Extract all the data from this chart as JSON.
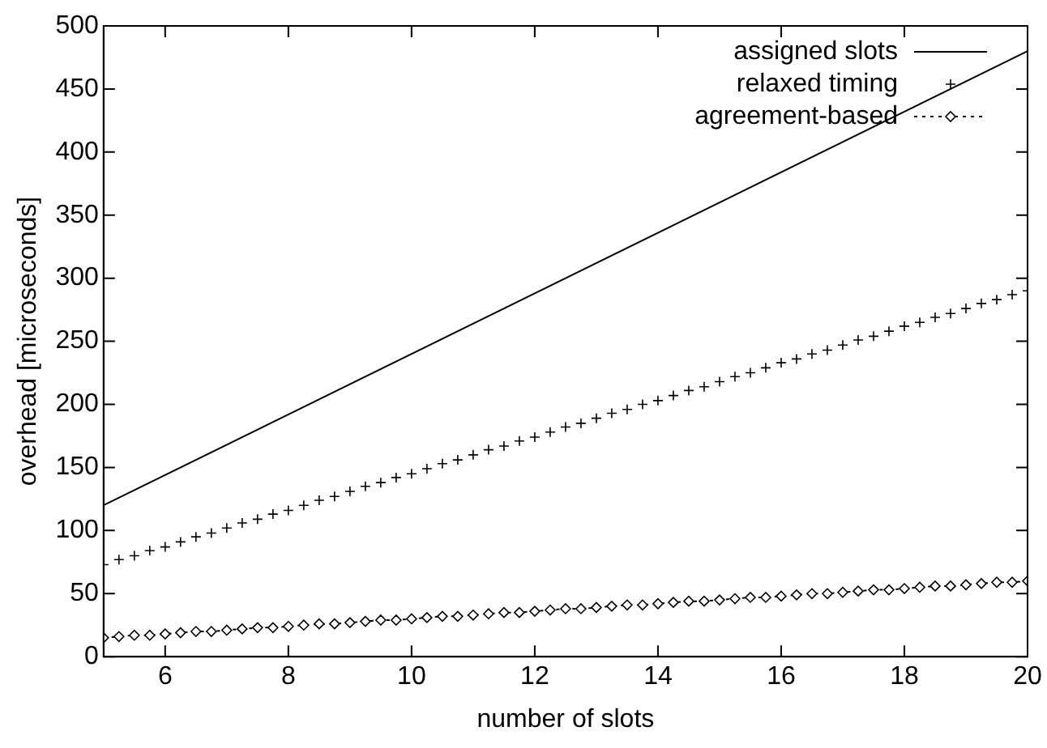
{
  "chart_data": {
    "type": "line",
    "xlabel": "number of slots",
    "ylabel": "overhead [microseconds]",
    "xlim": [
      5,
      20
    ],
    "xticks": [
      6,
      8,
      10,
      12,
      14,
      16,
      18,
      20
    ],
    "ylim": [
      0,
      500
    ],
    "yticks": [
      0,
      50,
      100,
      150,
      200,
      250,
      300,
      350,
      400,
      450,
      500
    ],
    "legend": "top right",
    "x": [
      5,
      5.25,
      5.5,
      5.75,
      6,
      6.25,
      6.5,
      6.75,
      7,
      7.25,
      7.5,
      7.75,
      8,
      8.25,
      8.5,
      8.75,
      9,
      9.25,
      9.5,
      9.75,
      10,
      10.25,
      10.5,
      10.75,
      11,
      11.25,
      11.5,
      11.75,
      12,
      12.25,
      12.5,
      12.75,
      13,
      13.25,
      13.5,
      13.75,
      14,
      14.25,
      14.5,
      14.75,
      15,
      15.25,
      15.5,
      15.75,
      16,
      16.25,
      16.5,
      16.75,
      17,
      17.25,
      17.5,
      17.75,
      18,
      18.25,
      18.5,
      18.75,
      19,
      19.25,
      19.5,
      19.75,
      20
    ],
    "series": [
      {
        "name": "assigned slots",
        "color": "#000000",
        "x": [
          5,
          20
        ],
        "values": [
          120,
          480
        ],
        "marker": "none",
        "line_style": "solid"
      },
      {
        "name": "relaxed timing",
        "color": "#000000",
        "type": "scatter",
        "marker": "cross",
        "values": [
          73,
          77,
          80,
          84,
          87,
          91,
          95,
          98,
          102,
          106,
          109,
          113,
          116,
          120,
          124,
          127,
          131,
          135,
          138,
          142,
          145,
          149,
          153,
          156,
          160,
          164,
          167,
          171,
          174,
          178,
          182,
          185,
          189,
          193,
          196,
          200,
          203,
          207,
          211,
          214,
          218,
          222,
          225,
          229,
          233,
          236,
          240,
          243,
          247,
          251,
          254,
          258,
          262,
          265,
          269,
          272,
          276,
          280,
          283,
          287,
          290
        ]
      },
      {
        "name": "agreement-based",
        "color": "#000000",
        "marker": "diamond",
        "line_style": "dotted",
        "values": [
          15,
          16,
          17,
          17,
          18,
          19,
          20,
          20,
          21,
          22,
          23,
          23,
          24,
          25,
          26,
          26,
          27,
          28,
          29,
          29,
          30,
          31,
          32,
          32,
          33,
          34,
          35,
          35,
          36,
          37,
          38,
          38,
          39,
          40,
          41,
          41,
          42,
          43,
          44,
          44,
          45,
          46,
          47,
          47,
          48,
          49,
          50,
          50,
          51,
          52,
          53,
          53,
          54,
          55,
          56,
          56,
          57,
          58,
          59,
          59,
          60
        ]
      }
    ]
  }
}
